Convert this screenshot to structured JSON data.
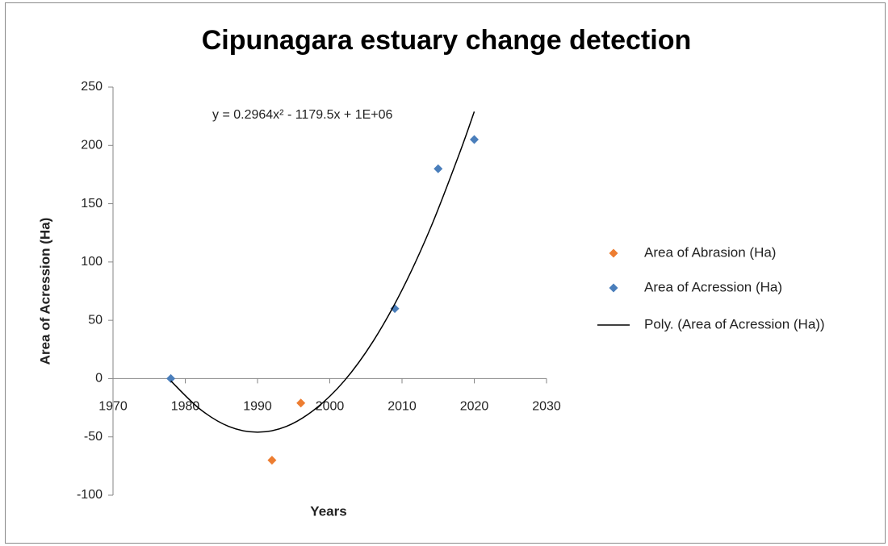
{
  "chart_data": {
    "type": "scatter",
    "title": "Cipunagara estuary change detection",
    "x_label": "Years",
    "y_label": "Area of Acression (Ha)",
    "annotation": "y = 0.2964x² - 1179.5x + 1E+06",
    "xlim": [
      1970,
      2030
    ],
    "xticks": [
      1970,
      1980,
      1990,
      2000,
      2010,
      2020,
      2030
    ],
    "ylim": [
      -100,
      250
    ],
    "yticks": [
      -100,
      -50,
      0,
      50,
      100,
      150,
      200,
      250
    ],
    "grid": false,
    "legend": "right",
    "series": [
      {
        "name": "Area of Abrasion (Ha)",
        "color": "#ed7d31",
        "marker": "diamond",
        "x": [
          1992,
          1996
        ],
        "values": [
          -70,
          -21
        ]
      },
      {
        "name": "Area of Acression (Ha)",
        "color": "#4a7ebb",
        "marker": "diamond",
        "x": [
          1978,
          2009,
          2015,
          2020
        ],
        "values": [
          0,
          60,
          180,
          205
        ]
      },
      {
        "name": "Poly. (Area of Acression (Ha))",
        "color": "#000000",
        "marker": "line",
        "x": [
          1978,
          1982,
          1986,
          1990,
          1994,
          1998,
          2002,
          2006,
          2010,
          2014,
          2018,
          2020
        ],
        "values": [
          -2,
          -26,
          -41,
          -46,
          -41,
          -26,
          -2,
          32,
          76,
          130,
          194,
          229
        ]
      }
    ]
  }
}
